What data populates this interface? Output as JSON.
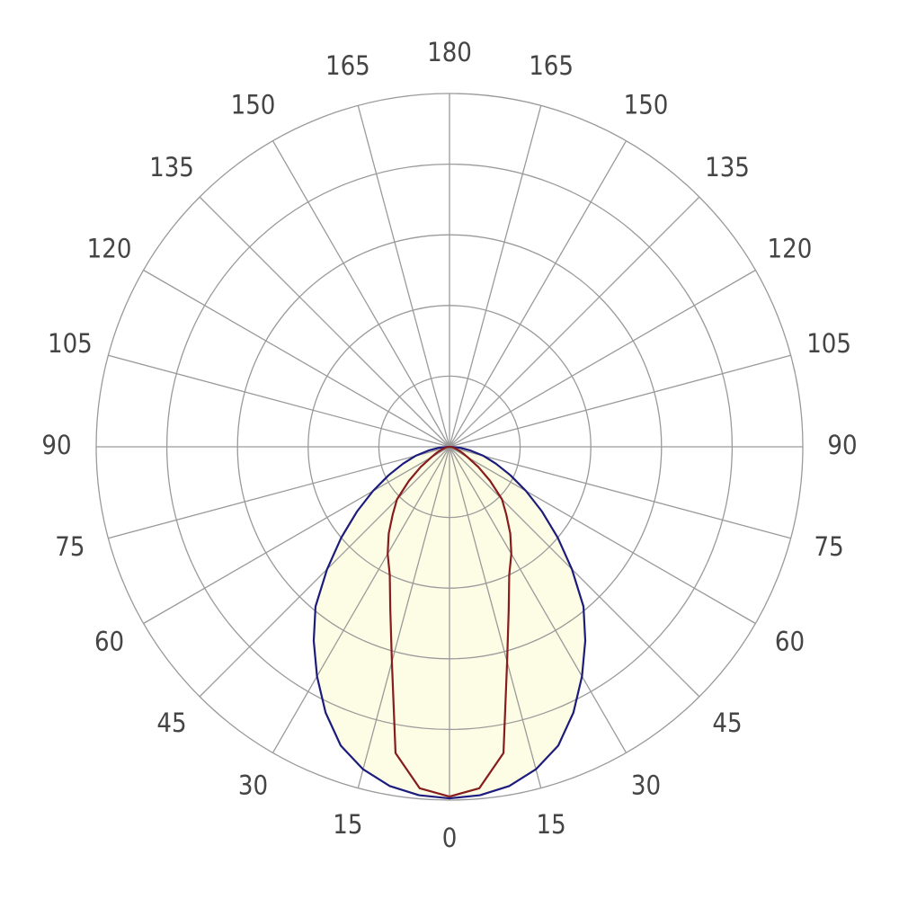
{
  "chart_data": {
    "type": "polar",
    "x": [
      0,
      5,
      10,
      15,
      20,
      25,
      30,
      35,
      40,
      45,
      50,
      55,
      60,
      65,
      70,
      75,
      80,
      85,
      90
    ],
    "series": [
      {
        "color": "#1c1c7c",
        "fill": "#fdfde6",
        "values": [
          99.5,
          99,
          97.5,
          94.5,
          90,
          83,
          75,
          67,
          59,
          49,
          40,
          32,
          25,
          19,
          14,
          10,
          6,
          3,
          0
        ]
      },
      {
        "color": "#861c1c",
        "values": [
          99,
          97,
          88,
          63,
          49,
          40,
          35,
          30,
          25,
          21,
          15,
          10,
          6,
          4,
          2.5,
          1.5,
          1,
          0.5,
          0
        ]
      }
    ],
    "rlim": [
      0,
      100
    ],
    "rticks": [
      20,
      40,
      60,
      80,
      100
    ],
    "angle_ticks": [
      0,
      15,
      30,
      45,
      60,
      75,
      90,
      105,
      120,
      135,
      150,
      165,
      180
    ],
    "grid_color": "#9a9a9a"
  }
}
